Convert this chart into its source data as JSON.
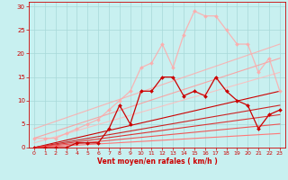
{
  "xlabel": "Vent moyen/en rafales ( km/h )",
  "xlim": [
    -0.5,
    23.5
  ],
  "ylim": [
    0,
    31
  ],
  "xticks": [
    0,
    1,
    2,
    3,
    4,
    5,
    6,
    7,
    8,
    9,
    10,
    11,
    12,
    13,
    14,
    15,
    16,
    17,
    18,
    19,
    20,
    21,
    22,
    23
  ],
  "yticks": [
    0,
    5,
    10,
    15,
    20,
    25,
    30
  ],
  "bg_color": "#c8f0f0",
  "grid_color": "#a8d8d8",
  "lines": [
    {
      "x": [
        0,
        1,
        2,
        3,
        4,
        5,
        6,
        7,
        8,
        9,
        10,
        11,
        12,
        13,
        14,
        15,
        16,
        17,
        18,
        19,
        20,
        21,
        22,
        23
      ],
      "y": [
        0,
        0,
        0,
        0,
        1,
        1,
        1,
        4,
        9,
        5,
        12,
        12,
        15,
        15,
        11,
        12,
        11,
        15,
        12,
        10,
        9,
        4,
        7,
        8
      ],
      "color": "#cc0000",
      "lw": 0.9,
      "marker": "D",
      "ms": 2.0,
      "alpha": 1.0,
      "zorder": 5
    },
    {
      "x": [
        0,
        23
      ],
      "y": [
        0,
        12
      ],
      "color": "#cc0000",
      "lw": 0.8,
      "marker": null,
      "ms": 0,
      "alpha": 1.0,
      "zorder": 3
    },
    {
      "x": [
        0,
        23
      ],
      "y": [
        0,
        9
      ],
      "color": "#cc2222",
      "lw": 0.8,
      "marker": null,
      "ms": 0,
      "alpha": 1.0,
      "zorder": 3
    },
    {
      "x": [
        0,
        23
      ],
      "y": [
        0,
        7
      ],
      "color": "#dd3333",
      "lw": 0.8,
      "marker": null,
      "ms": 0,
      "alpha": 1.0,
      "zorder": 3
    },
    {
      "x": [
        0,
        23
      ],
      "y": [
        0,
        5
      ],
      "color": "#ee5555",
      "lw": 0.8,
      "marker": null,
      "ms": 0,
      "alpha": 1.0,
      "zorder": 3
    },
    {
      "x": [
        0,
        23
      ],
      "y": [
        0,
        3
      ],
      "color": "#ff7777",
      "lw": 0.8,
      "marker": null,
      "ms": 0,
      "alpha": 1.0,
      "zorder": 3
    },
    {
      "x": [
        0,
        23
      ],
      "y": [
        4,
        22
      ],
      "color": "#ffaaaa",
      "lw": 0.8,
      "marker": null,
      "ms": 0,
      "alpha": 0.85,
      "zorder": 2
    },
    {
      "x": [
        0,
        23
      ],
      "y": [
        2,
        19
      ],
      "color": "#ff9999",
      "lw": 0.8,
      "marker": null,
      "ms": 0,
      "alpha": 0.85,
      "zorder": 2
    },
    {
      "x": [
        0,
        23
      ],
      "y": [
        1,
        16
      ],
      "color": "#ffbbbb",
      "lw": 0.8,
      "marker": null,
      "ms": 0,
      "alpha": 0.85,
      "zorder": 2
    },
    {
      "x": [
        0,
        1,
        2,
        3,
        4,
        5,
        6,
        7,
        8,
        9,
        10,
        11,
        12,
        13,
        14,
        15,
        16,
        17,
        18,
        19,
        20,
        21,
        22,
        23
      ],
      "y": [
        2,
        2,
        2,
        3,
        4,
        5,
        6,
        8,
        10,
        12,
        17,
        18,
        22,
        17,
        24,
        29,
        28,
        28,
        25,
        22,
        22,
        16,
        19,
        12
      ],
      "color": "#ffaaaa",
      "lw": 0.9,
      "marker": "D",
      "ms": 2.0,
      "alpha": 0.85,
      "zorder": 4
    }
  ]
}
